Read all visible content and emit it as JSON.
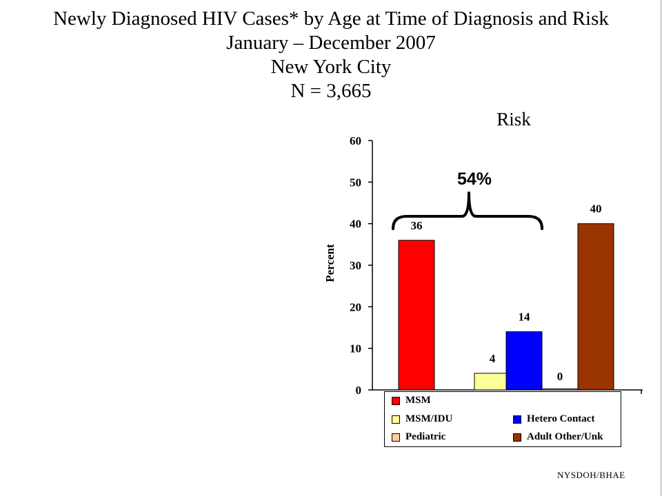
{
  "title": {
    "line1": "Newly Diagnosed HIV Cases* by Age at Time of Diagnosis and Risk",
    "line2": "January – December 2007",
    "line3": "New York City",
    "line4": "N = 3,665"
  },
  "source": "NYSDOH/BHAE",
  "chart_data": {
    "type": "bar",
    "title": "Risk",
    "xlabel": "",
    "ylabel": "Percent",
    "ylim": [
      0,
      60
    ],
    "yticks": [
      0,
      10,
      20,
      30,
      40,
      50,
      60
    ],
    "grid": false,
    "legend_position": "bottom",
    "bars": [
      {
        "category": "MSM",
        "value": 36,
        "label": "36",
        "color": "#ff0000"
      },
      {
        "category": "MSM/IDU",
        "value": 4,
        "label": "4",
        "color": "#ffff99"
      },
      {
        "category": "Hetero Contact",
        "value": 14,
        "label": "14",
        "color": "#0000ff"
      },
      {
        "category": "Pediatric",
        "value": 0,
        "label": "0",
        "color": "#ffcc99"
      },
      {
        "category": "Adult Other/Unk",
        "value": 40,
        "label": "40",
        "color": "#993300"
      }
    ],
    "annotation": {
      "text": "54%",
      "spans": [
        "MSM",
        "MSM/IDU",
        "Hetero Contact"
      ]
    },
    "legend": [
      {
        "name": "MSM",
        "color": "#ff0000"
      },
      {
        "name": "MSM/IDU",
        "color": "#ffff99"
      },
      {
        "name": "Hetero Contact",
        "color": "#0000ff"
      },
      {
        "name": "Pediatric",
        "color": "#ffcc99"
      },
      {
        "name": "Adult Other/Unk",
        "color": "#993300"
      }
    ]
  }
}
